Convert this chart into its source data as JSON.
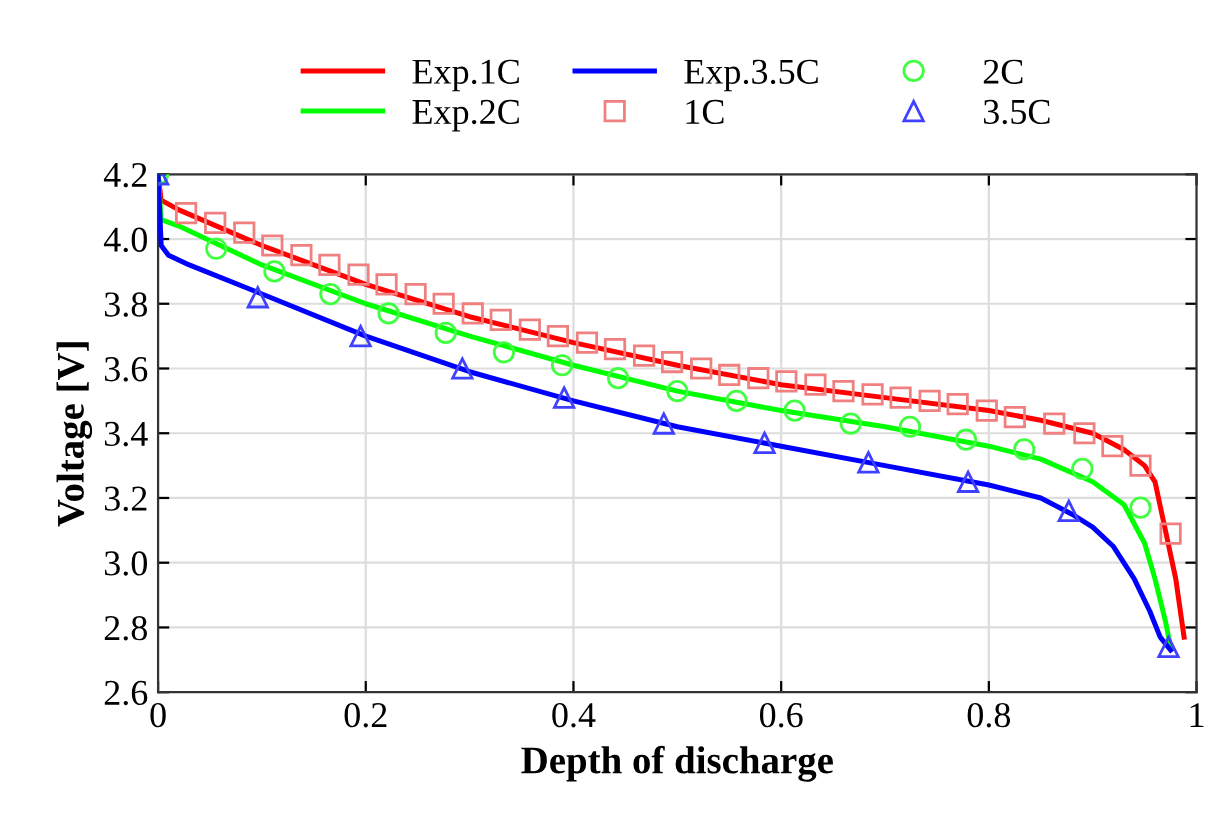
{
  "chart_data": {
    "type": "line",
    "xlabel": "Depth of discharge",
    "ylabel": "Voltage [V]",
    "xlim": [
      0,
      1
    ],
    "ylim": [
      2.6,
      4.2
    ],
    "xticks": [
      0,
      0.2,
      0.4,
      0.6,
      0.8,
      1
    ],
    "yticks": [
      2.6,
      2.8,
      {
        "value": 3,
        "label": "3.0"
      },
      3.2,
      3.4,
      3.6,
      3.8,
      {
        "value": 4,
        "label": "4.0"
      },
      4.2
    ],
    "grid": true,
    "legend": "top",
    "series": [
      {
        "name": "Exp.1C",
        "color": "#ff0000",
        "marker": "none",
        "x": [
          0,
          0.003,
          0.02,
          0.1,
          0.2,
          0.3,
          0.4,
          0.5,
          0.6,
          0.7,
          0.8,
          0.85,
          0.9,
          0.93,
          0.95,
          0.96,
          0.97,
          0.98,
          0.988
        ],
        "values": [
          4.2,
          4.12,
          4.09,
          3.98,
          3.86,
          3.76,
          3.68,
          3.61,
          3.55,
          3.51,
          3.47,
          3.44,
          3.4,
          3.35,
          3.3,
          3.25,
          3.1,
          2.95,
          2.77
        ]
      },
      {
        "name": "Exp.2C",
        "color": "#00ff00",
        "marker": "none",
        "x": [
          0,
          0.003,
          0.02,
          0.1,
          0.2,
          0.3,
          0.4,
          0.5,
          0.6,
          0.7,
          0.8,
          0.85,
          0.9,
          0.93,
          0.95,
          0.96,
          0.97,
          0.975
        ],
        "values": [
          4.2,
          4.06,
          4.04,
          3.92,
          3.8,
          3.7,
          3.61,
          3.53,
          3.47,
          3.42,
          3.36,
          3.32,
          3.25,
          3.18,
          3.06,
          2.95,
          2.82,
          2.74
        ]
      },
      {
        "name": "Exp.3.5C",
        "color": "#0000ff",
        "marker": "none",
        "x": [
          0,
          0.003,
          0.01,
          0.03,
          0.1,
          0.2,
          0.3,
          0.4,
          0.5,
          0.6,
          0.7,
          0.8,
          0.85,
          0.88,
          0.9,
          0.92,
          0.94,
          0.955,
          0.965,
          0.975
        ],
        "values": [
          4.2,
          3.98,
          3.95,
          3.92,
          3.83,
          3.7,
          3.59,
          3.5,
          3.42,
          3.36,
          3.3,
          3.24,
          3.2,
          3.15,
          3.11,
          3.05,
          2.95,
          2.85,
          2.77,
          2.73
        ]
      },
      {
        "name": "1C",
        "type": "scatter",
        "color": "#f08080",
        "marker": "square",
        "x": [
          0.027,
          0.055,
          0.083,
          0.11,
          0.138,
          0.165,
          0.193,
          0.22,
          0.248,
          0.275,
          0.303,
          0.33,
          0.358,
          0.385,
          0.413,
          0.44,
          0.468,
          0.495,
          0.523,
          0.55,
          0.578,
          0.605,
          0.633,
          0.66,
          0.688,
          0.715,
          0.743,
          0.77,
          0.798,
          0.825,
          0.863,
          0.892,
          0.919,
          0.946,
          0.975
        ],
        "values": [
          4.08,
          4.05,
          4.02,
          3.98,
          3.95,
          3.92,
          3.89,
          3.86,
          3.83,
          3.8,
          3.77,
          3.75,
          3.72,
          3.7,
          3.68,
          3.66,
          3.64,
          3.62,
          3.6,
          3.58,
          3.57,
          3.56,
          3.55,
          3.53,
          3.52,
          3.51,
          3.5,
          3.49,
          3.47,
          3.45,
          3.43,
          3.4,
          3.36,
          3.3,
          3.09
        ]
      },
      {
        "name": "2C",
        "type": "scatter",
        "color": "#40ff40",
        "marker": "circle",
        "x": [
          0,
          0.056,
          0.112,
          0.166,
          0.222,
          0.277,
          0.333,
          0.389,
          0.443,
          0.5,
          0.557,
          0.613,
          0.667,
          0.724,
          0.778,
          0.834,
          0.89,
          0.946
        ],
        "values": [
          4.2,
          3.97,
          3.9,
          3.83,
          3.77,
          3.71,
          3.65,
          3.61,
          3.57,
          3.53,
          3.5,
          3.47,
          3.43,
          3.42,
          3.38,
          3.35,
          3.29,
          3.17
        ]
      },
      {
        "name": "3.5C",
        "type": "scatter",
        "color": "#4040ff",
        "marker": "triangle",
        "x": [
          0,
          0.096,
          0.195,
          0.293,
          0.391,
          0.487,
          0.584,
          0.684,
          0.78,
          0.877,
          0.973
        ],
        "values": [
          4.2,
          3.82,
          3.7,
          3.6,
          3.51,
          3.43,
          3.37,
          3.31,
          3.25,
          3.16,
          2.74
        ]
      }
    ]
  }
}
